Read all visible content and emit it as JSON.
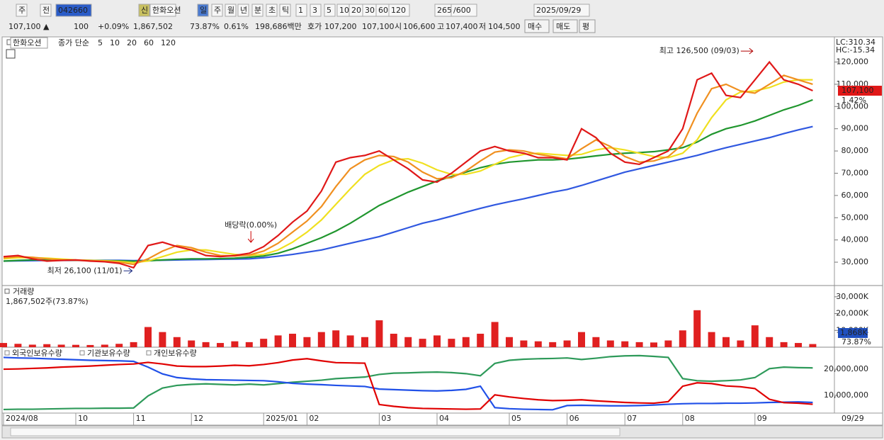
{
  "toolbar": {
    "row1": [
      "주",
      "전",
      "042660",
      "신",
      "한화오션",
      "일",
      "주",
      "월",
      "년",
      "분",
      "초",
      "틱",
      "1",
      "3",
      "5",
      "10",
      "20",
      "30",
      "60",
      "120",
      "265",
      "/600",
      "2025/09/29"
    ],
    "row2": [
      "107,100 ▲",
      "100",
      "+0.09%",
      "1,867,502",
      "73.87%",
      "0.61%",
      "198,686백만",
      "호가",
      "107,200",
      "107,100",
      "시",
      "106,600",
      "고",
      "107,400",
      "저",
      "104,500",
      "매수",
      "매도",
      "평"
    ]
  },
  "x_axis": {
    "categories": [
      "2024/08",
      null,
      null,
      null,
      null,
      "10",
      null,
      null,
      null,
      "11",
      null,
      null,
      null,
      "12",
      null,
      null,
      null,
      null,
      "2025/01",
      null,
      null,
      "02",
      null,
      null,
      null,
      null,
      "03",
      null,
      null,
      null,
      "04",
      null,
      null,
      null,
      null,
      "05",
      null,
      null,
      null,
      "06",
      null,
      null,
      null,
      "07",
      null,
      null,
      null,
      "08",
      null,
      null,
      null,
      null,
      "09",
      null,
      null,
      null,
      null
    ],
    "end_label": "09/29"
  },
  "chart_data": [
    {
      "type": "line",
      "title": "한화오션",
      "legend_label": "종가 단순",
      "series": [
        {
          "name": "5",
          "color": "#e01818",
          "values": [
            32500,
            33000,
            31500,
            30500,
            30800,
            31000,
            30500,
            30200,
            29500,
            27500,
            37500,
            39000,
            37000,
            35500,
            33000,
            32500,
            33000,
            34000,
            37000,
            42000,
            48000,
            53000,
            62000,
            75000,
            77000,
            78000,
            80000,
            76000,
            72000,
            67000,
            66000,
            70000,
            75000,
            80000,
            82000,
            80000,
            79000,
            77000,
            77000,
            76000,
            90000,
            86000,
            79000,
            75000,
            74000,
            77000,
            80000,
            90000,
            112000,
            115000,
            105000,
            104000,
            112000,
            120000,
            112000,
            110000,
            107100
          ]
        },
        {
          "name": "10",
          "color": "#f09020",
          "values": [
            32000,
            32500,
            32200,
            31500,
            31000,
            30900,
            30700,
            30400,
            30000,
            29000,
            31500,
            35000,
            37500,
            36500,
            34500,
            33000,
            32800,
            33200,
            35000,
            38500,
            43500,
            48500,
            55000,
            64000,
            72000,
            76000,
            78000,
            77500,
            75000,
            70500,
            67500,
            68000,
            71000,
            75500,
            79500,
            80500,
            80000,
            78500,
            77500,
            76500,
            81000,
            85000,
            82000,
            77500,
            75000,
            75500,
            77500,
            83000,
            97000,
            108000,
            110000,
            107000,
            106000,
            110000,
            114000,
            112000,
            110000
          ]
        },
        {
          "name": "20",
          "color": "#f0e020",
          "values": [
            31500,
            32000,
            32000,
            31800,
            31400,
            31000,
            30800,
            30600,
            30300,
            29800,
            30500,
            32500,
            34500,
            35500,
            35500,
            34500,
            33500,
            33000,
            33500,
            35500,
            39000,
            43500,
            49000,
            56000,
            63000,
            69500,
            73500,
            76000,
            76500,
            74500,
            71500,
            69500,
            69500,
            71000,
            74000,
            77000,
            78500,
            79000,
            78500,
            78000,
            78500,
            80500,
            81500,
            80500,
            79000,
            77500,
            77000,
            79000,
            85000,
            95000,
            103000,
            106500,
            107000,
            108500,
            111000,
            112000,
            112000
          ]
        },
        {
          "name": "60",
          "color": "#20962e",
          "values": [
            30500,
            30800,
            31000,
            31000,
            31000,
            30900,
            30800,
            30700,
            30600,
            30400,
            30600,
            31000,
            31300,
            31500,
            31500,
            31600,
            31800,
            32200,
            32800,
            34000,
            36000,
            38500,
            41000,
            44000,
            47500,
            51500,
            55500,
            58500,
            61500,
            64000,
            66500,
            68500,
            70500,
            72500,
            74000,
            75000,
            75500,
            76000,
            76000,
            76300,
            77000,
            77800,
            78500,
            79000,
            79300,
            79700,
            80500,
            81500,
            84000,
            87500,
            90000,
            91500,
            93500,
            96000,
            98500,
            100500,
            103000
          ]
        },
        {
          "name": "120",
          "color": "#3058e0",
          "values": [
            30500,
            30600,
            30700,
            30800,
            30800,
            30800,
            30800,
            30800,
            30800,
            30700,
            30800,
            30900,
            31000,
            31100,
            31200,
            31300,
            31400,
            31500,
            32000,
            32700,
            33500,
            34500,
            35500,
            37000,
            38500,
            40000,
            41500,
            43500,
            45500,
            47500,
            49000,
            50700,
            52500,
            54200,
            55800,
            57200,
            58500,
            60000,
            61500,
            62700,
            64500,
            66500,
            68500,
            70500,
            72000,
            73500,
            75000,
            76500,
            78000,
            79800,
            81500,
            83000,
            84500,
            86000,
            87800,
            89500,
            91000
          ]
        }
      ],
      "ylim": [
        19500,
        131000
      ],
      "yticks": [
        {
          "value": 30000,
          "label": "30,000"
        },
        {
          "value": 40000,
          "label": "40,000"
        },
        {
          "value": 50000,
          "label": "50,000"
        },
        {
          "value": 60000,
          "label": "60,000"
        },
        {
          "value": 70000,
          "label": "70,000"
        },
        {
          "value": 80000,
          "label": "80,000"
        },
        {
          "value": 90000,
          "label": "90,000"
        },
        {
          "value": 100000,
          "label": "100,000"
        },
        {
          "value": 110000,
          "label": "110,000"
        },
        {
          "value": 120000,
          "label": "120,000"
        }
      ],
      "annotations": [
        {
          "label": "최고 126,500 (09/03)",
          "value": 126500,
          "index": 52
        },
        {
          "label": "최저 26,100 (11/01)",
          "value": 26100,
          "index": 9
        },
        {
          "label": "배당락(0.00%)",
          "index": 18
        }
      ],
      "last_value_label": "107,100",
      "change_label": "1.42%",
      "lc_label": "LC:310.34",
      "hc_label": "HC:-15.34"
    },
    {
      "type": "bar",
      "title": "거래량",
      "subtitle": "1,867,502주(73.87%)",
      "color": "#e02020",
      "values": [
        2500,
        2000,
        1500,
        1800,
        1500,
        1400,
        1300,
        1500,
        2000,
        3000,
        12000,
        9000,
        6000,
        4000,
        3000,
        2500,
        3500,
        3000,
        5000,
        7000,
        8000,
        6000,
        9000,
        10000,
        7000,
        6000,
        16000,
        8000,
        6000,
        5000,
        7000,
        5000,
        6000,
        8000,
        15000,
        6000,
        4000,
        3500,
        3000,
        4000,
        9000,
        6000,
        4000,
        3500,
        3000,
        2800,
        4000,
        10000,
        22000,
        9000,
        6000,
        4000,
        13000,
        6000,
        3000,
        2500,
        1868
      ],
      "ylim": [
        0,
        35000
      ],
      "yticks": [
        {
          "value": 10000,
          "label": "10,000K"
        },
        {
          "value": 20000,
          "label": "20,000K"
        },
        {
          "value": 30000,
          "label": "30,000K"
        }
      ],
      "last_value_label": "1,868K",
      "ratio_label": "73.87%"
    },
    {
      "type": "line",
      "series": [
        {
          "name": "외국인보유수량",
          "color": "#e00000",
          "values": [
            20000000,
            20100000,
            20300000,
            20500000,
            20800000,
            21000000,
            21200000,
            21500000,
            21800000,
            22000000,
            22600000,
            22000000,
            21200000,
            21000000,
            21000000,
            21200000,
            21500000,
            21300000,
            21800000,
            22500000,
            23500000,
            24000000,
            23200000,
            22500000,
            22400000,
            22300000,
            6500000,
            5800000,
            5300000,
            5000000,
            4900000,
            4800000,
            4700000,
            4800000,
            10200000,
            9400000,
            8800000,
            8300000,
            8000000,
            8100000,
            8300000,
            7900000,
            7600000,
            7300000,
            7100000,
            7000000,
            7600000,
            13500000,
            14800000,
            14500000,
            13600000,
            13300000,
            12600000,
            8500000,
            7200000,
            7000000,
            6600000
          ]
        },
        {
          "name": "기관보유수량",
          "color": "#2050e8",
          "values": [
            24500000,
            24300000,
            24200000,
            24000000,
            23800000,
            23600000,
            23400000,
            23300000,
            23200000,
            23000000,
            20800000,
            18200000,
            16800000,
            16300000,
            16000000,
            15900000,
            15800000,
            15700000,
            15600000,
            15200000,
            14600000,
            14300000,
            14100000,
            13800000,
            13600000,
            13400000,
            12400000,
            12200000,
            12000000,
            11800000,
            11700000,
            11900000,
            12300000,
            13500000,
            5300000,
            4900000,
            4700000,
            4600000,
            4500000,
            6100000,
            6200000,
            6100000,
            6000000,
            6000000,
            6100000,
            6300000,
            6600000,
            6800000,
            6900000,
            6900000,
            7000000,
            7000000,
            7100000,
            7300000,
            7400000,
            7500000,
            7300000
          ]
        },
        {
          "name": "개인보유수량",
          "color": "#2e9a5a",
          "values": [
            4600000,
            4700000,
            4700000,
            4800000,
            4900000,
            5000000,
            5000000,
            5100000,
            5100000,
            5200000,
            9800000,
            12800000,
            13800000,
            14200000,
            14400000,
            14200000,
            14000000,
            14300000,
            14000000,
            14500000,
            15000000,
            15400000,
            15800000,
            16400000,
            16700000,
            17000000,
            18000000,
            18500000,
            18600000,
            18800000,
            18900000,
            18700000,
            18300000,
            17500000,
            22200000,
            23400000,
            23800000,
            24000000,
            24100000,
            24300000,
            23700000,
            24200000,
            24800000,
            25100000,
            25200000,
            24900000,
            24500000,
            16400000,
            15600000,
            15400000,
            15600000,
            15900000,
            16800000,
            20200000,
            20800000,
            20600000,
            20500000
          ]
        }
      ],
      "ylim": [
        3500000,
        27600000
      ],
      "yticks": [
        {
          "value": 10000000,
          "label": "10,000,000"
        },
        {
          "value": 20000000,
          "label": "20,000,000"
        }
      ]
    }
  ]
}
